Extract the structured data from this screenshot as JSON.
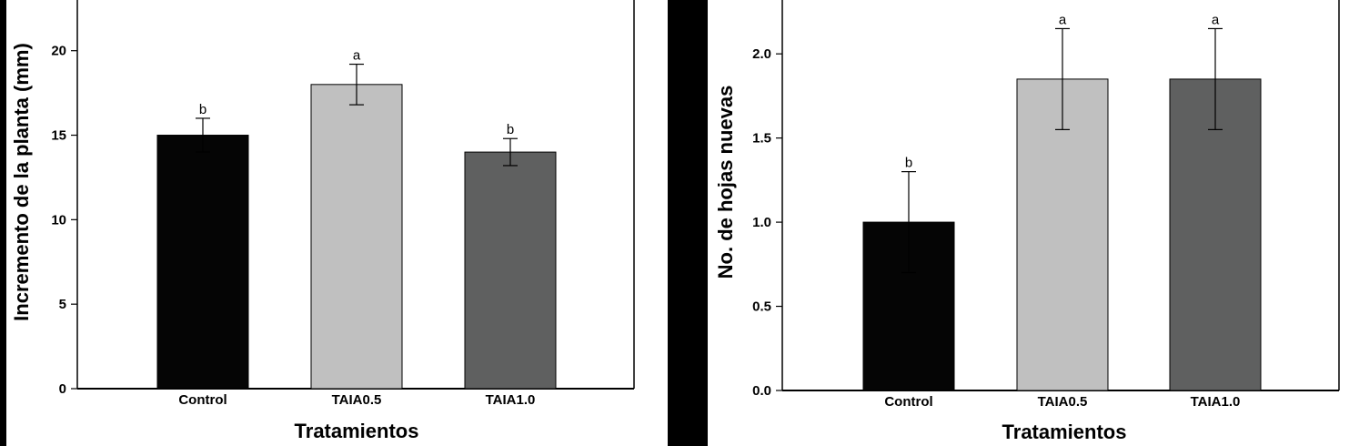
{
  "chart_data": [
    {
      "type": "bar",
      "categories": [
        "Control",
        "TAIA0.5",
        "TAIA1.0"
      ],
      "values": [
        15,
        18,
        14
      ],
      "errors": [
        1.0,
        1.2,
        0.8
      ],
      "letters": [
        "b",
        "a",
        "b"
      ],
      "colors": [
        "#050505",
        "#c0c0c0",
        "#5f6060"
      ],
      "xlabel": "Tratamientos",
      "ylabel": "Incremento de la planta (mm)",
      "ylim": [
        0,
        23
      ],
      "yticks": [
        0,
        5,
        10,
        15,
        20
      ],
      "ytick_labels": [
        "0",
        "5",
        "10",
        "15",
        "20"
      ]
    },
    {
      "type": "bar",
      "categories": [
        "Control",
        "TAIA0.5",
        "TAIA1.0"
      ],
      "values": [
        1.0,
        1.85,
        1.85
      ],
      "errors": [
        0.3,
        0.3,
        0.3
      ],
      "letters": [
        "b",
        "a",
        "a"
      ],
      "colors": [
        "#050505",
        "#c0c0c0",
        "#5f6060"
      ],
      "xlabel": "Tratamientos",
      "ylabel": "No. de hojas nuevas",
      "ylim": [
        0,
        2.32
      ],
      "yticks": [
        0,
        0.5,
        1.0,
        1.5,
        2.0
      ],
      "ytick_labels": [
        "0.0",
        "0.5",
        "1.0",
        "1.5",
        "2.0"
      ]
    }
  ]
}
